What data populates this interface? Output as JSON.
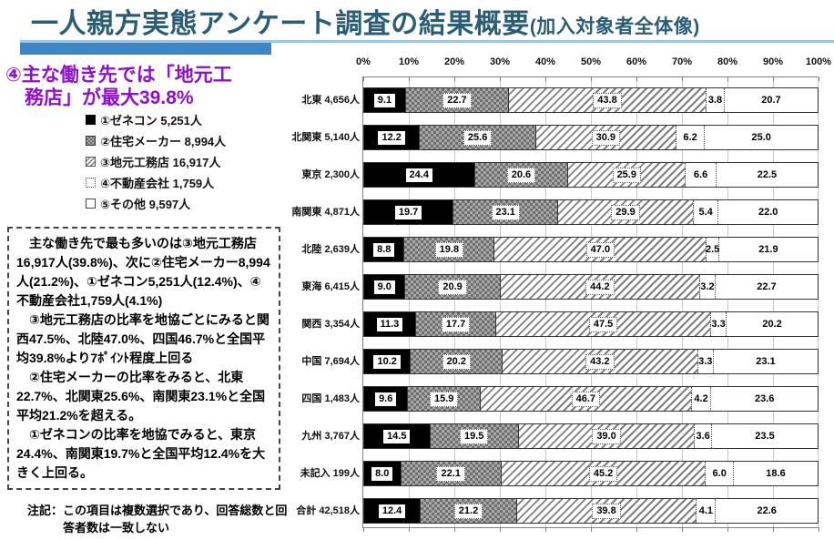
{
  "header": {
    "title": "一人親方実態アンケート調査の結果概要",
    "title_suffix": "(加入対象者全体像)",
    "title_color": "#2B5D77",
    "accent_bar_color": "#3C86C6",
    "accent_line_color": "#9CC6EA"
  },
  "panel": {
    "heading_line1": "④主な働き先では「地元工",
    "heading_line2": "務店」が最大39.8%",
    "heading_color": "#8E10CE",
    "summary_paragraphs": [
      "主な働き先で最も多いのは③地元工務店16,917人(39.8%)、次に②住宅メーカー8,994人(21.2%)、①ゼネコン5,251人(12.4%)、④不動産会社1,759人(4.1%)",
      "③地元工務店の比率を地協ごとにみると関西47.5%、北陸47.0%、四国46.7%と全国平均39.8%より7ﾎﾟｲﾝﾄ程度上回る",
      "②住宅メーカーの比率をみると、北東22.7%、北関東25.6%、南関東23.1%と全国平均21.2%を超える。",
      "①ゼネコンの比率を地協でみると、東京24.4%、南関東19.7%と全国平均12.4%を大きく上回る。"
    ],
    "note_line1": "注記：この項目は複数選択であり、回答総数と回",
    "note_line2": "答者数は一致しない"
  },
  "chart_data": {
    "type": "bar",
    "stacked": true,
    "orientation": "horizontal",
    "xlim": [
      0,
      100
    ],
    "grid": true,
    "x_ticks": [
      "0%",
      "10%",
      "20%",
      "30%",
      "40%",
      "50%",
      "60%",
      "70%",
      "80%",
      "90%",
      "100%"
    ],
    "categories": [
      "北東 4,656人",
      "北関東 5,140人",
      "東京 2,300人",
      "南関東 4,871人",
      "北陸 2,639人",
      "東海 6,415人",
      "関西 3,354人",
      "中国 7,694人",
      "四国 1,483人",
      "九州 3,767人",
      "未記入 199人",
      "合計 42,518人"
    ],
    "series": [
      {
        "name": "①ゼネコン 5,251人",
        "pattern": "solid-black",
        "values": [
          9.1,
          12.2,
          24.4,
          19.7,
          8.8,
          9.0,
          11.3,
          10.2,
          9.6,
          14.5,
          8.0,
          12.4
        ]
      },
      {
        "name": "②住宅メーカー 8,994人",
        "pattern": "gray-checker",
        "values": [
          22.7,
          25.6,
          20.6,
          23.1,
          19.8,
          20.9,
          17.7,
          20.2,
          15.9,
          19.5,
          22.1,
          21.2
        ]
      },
      {
        "name": "③地元工務店 16,917人",
        "pattern": "diagonal-hatch",
        "values": [
          43.8,
          30.9,
          25.9,
          29.9,
          47.0,
          44.2,
          47.5,
          43.2,
          46.7,
          39.0,
          45.2,
          39.8
        ]
      },
      {
        "name": "④不動産会社 1,759人",
        "pattern": "white-dotted-border",
        "values": [
          3.8,
          6.2,
          6.6,
          5.4,
          2.5,
          3.2,
          3.3,
          3.3,
          4.2,
          3.6,
          6.0,
          4.1
        ]
      },
      {
        "name": "⑤その他 9,597人",
        "pattern": "white-solid-border",
        "values": [
          20.7,
          25.0,
          22.5,
          22.0,
          21.9,
          22.7,
          20.2,
          23.1,
          23.6,
          23.5,
          18.6,
          22.6
        ]
      }
    ]
  }
}
